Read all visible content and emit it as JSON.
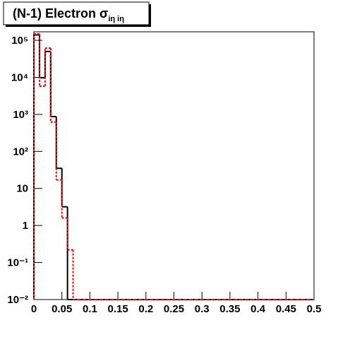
{
  "chart_data": {
    "type": "histogram",
    "title": "(N-1) Electron σ",
    "title_subscript": "iη iη",
    "bins": [
      0,
      0.01,
      0.02,
      0.03,
      0.04,
      0.05,
      0.06,
      0.07,
      0.08,
      0.09,
      0.1,
      0.11,
      0.12,
      0.13,
      0.14,
      0.15,
      0.16,
      0.17,
      0.18,
      0.19,
      0.2,
      0.21,
      0.22,
      0.23,
      0.24,
      0.25,
      0.26,
      0.27,
      0.28,
      0.29,
      0.3,
      0.31,
      0.32,
      0.33,
      0.34,
      0.35,
      0.36,
      0.37,
      0.38,
      0.39,
      0.4,
      0.41,
      0.42,
      0.43,
      0.44,
      0.45,
      0.46,
      0.47,
      0.48,
      0.49,
      0.5
    ],
    "series": [
      {
        "color": "#000000",
        "dash": false,
        "values": [
          140000,
          9800,
          50000,
          870,
          35,
          3.2,
          0,
          0,
          0,
          0,
          0,
          0,
          0,
          0,
          0,
          0,
          0,
          0,
          0,
          0,
          0,
          0,
          0,
          0,
          0,
          0,
          0,
          0,
          0,
          0,
          0,
          0,
          0,
          0,
          0,
          0,
          0,
          0,
          0,
          0,
          0,
          0,
          0,
          0,
          0,
          0,
          0,
          0,
          0,
          0
        ]
      },
      {
        "color": "#ff0000",
        "dash": true,
        "values": [
          150000,
          5800,
          62000,
          620,
          17,
          1.6,
          0.22,
          0,
          0,
          0,
          0,
          0,
          0,
          0,
          0,
          0,
          0,
          0,
          0,
          0,
          0,
          0,
          0,
          0,
          0,
          0,
          0,
          0,
          0,
          0,
          0,
          0,
          0,
          0,
          0,
          0,
          0,
          0,
          0,
          0,
          0,
          0,
          0,
          0,
          0,
          0,
          0,
          0,
          0,
          0
        ]
      }
    ],
    "xlim": [
      0,
      0.5
    ],
    "xticks": [
      0,
      0.05,
      0.1,
      0.15,
      0.2,
      0.25,
      0.3,
      0.35,
      0.4,
      0.45,
      0.5
    ],
    "ylim": [
      0.01,
      170000
    ],
    "log_y": true,
    "yticks": [
      {
        "value": 0.01,
        "label": "10⁻²"
      },
      {
        "value": 0.1,
        "label": "10⁻¹"
      },
      1,
      10,
      {
        "value": 100,
        "label": "10²"
      },
      {
        "value": 1000,
        "label": "10³"
      },
      {
        "value": 10000,
        "label": "10⁴"
      },
      {
        "value": 100000,
        "label": "10⁵"
      }
    ]
  }
}
